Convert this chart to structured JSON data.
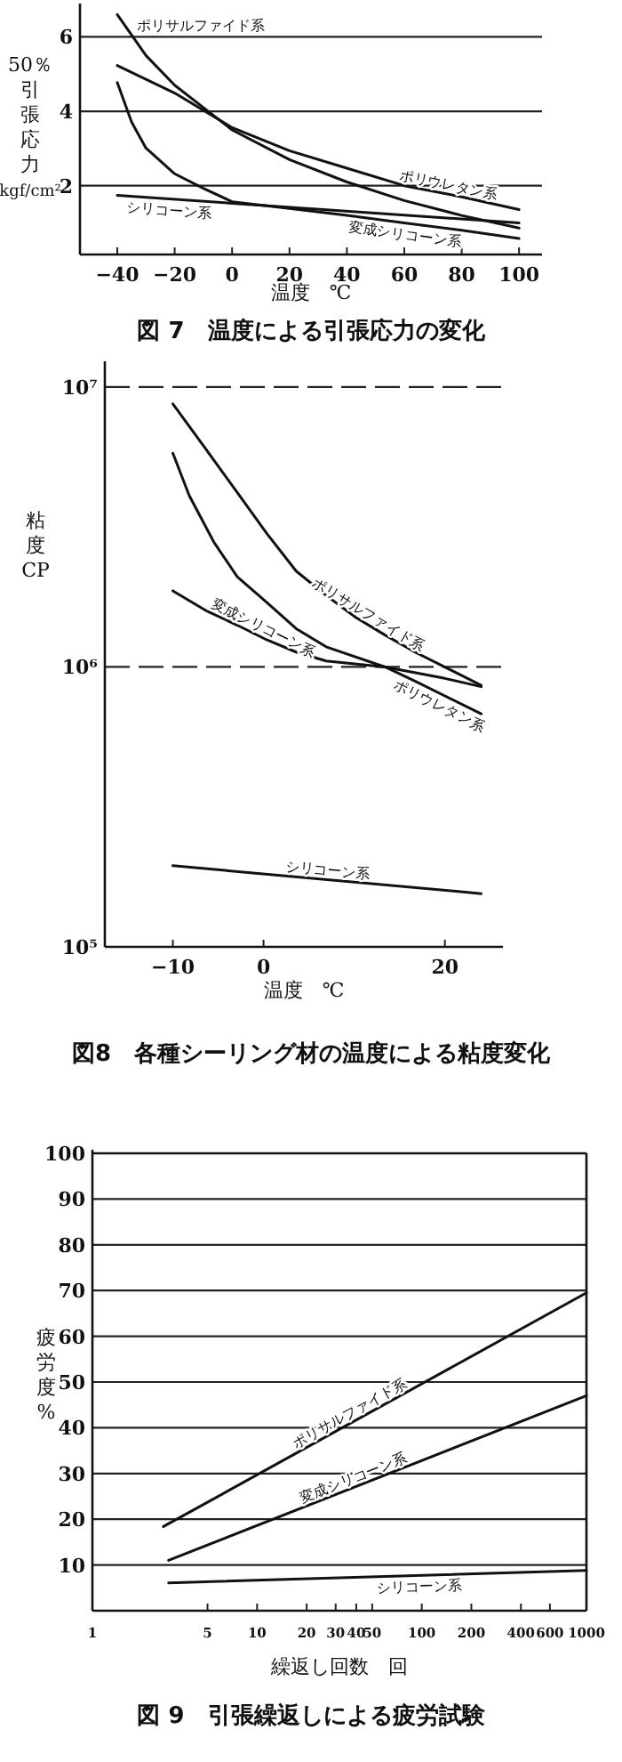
{
  "chart_data": [
    {
      "type": "line",
      "title": "図 7　温度による引張応力の変化",
      "xlabel": "温度　℃",
      "ylabel": "50％引張応力kgf/cm²",
      "xlim": [
        -53,
        108
      ],
      "xticks": [
        {
          "value": -40,
          "label": "−40"
        },
        {
          "value": -20,
          "label": "−20"
        },
        0,
        20,
        40,
        60,
        80,
        100
      ],
      "ylim": [
        0.15,
        6.8
      ],
      "yticks": [
        2,
        4,
        6
      ],
      "grid": "y",
      "series": [
        {
          "name": "ポリサルファイド系",
          "color": "#111111",
          "x": [
            -40,
            -30,
            -20,
            -10,
            0,
            20,
            40,
            60,
            80,
            100
          ],
          "values": [
            6.6,
            5.5,
            4.7,
            4.1,
            3.5,
            2.7,
            2.1,
            1.6,
            1.2,
            0.86
          ]
        },
        {
          "name": "ポリウレタン系",
          "color": "#111111",
          "x": [
            -40,
            -20,
            0,
            20,
            40,
            60,
            80,
            100
          ],
          "values": [
            5.23,
            4.49,
            3.56,
            2.94,
            2.47,
            2.0,
            1.7,
            1.36
          ]
        },
        {
          "name": "変成シリコーン系",
          "color": "#111111",
          "x": [
            -40,
            -35,
            -30,
            -20,
            -10,
            0,
            20,
            40,
            60,
            80,
            100
          ],
          "values": [
            4.77,
            3.71,
            3.01,
            2.32,
            1.93,
            1.57,
            1.39,
            1.2,
            1.0,
            0.8,
            0.58
          ]
        },
        {
          "name": "シリコーン系",
          "color": "#111111",
          "x": [
            -40,
            100
          ],
          "values": [
            1.74,
            1.0
          ]
        }
      ]
    },
    {
      "type": "line",
      "title": "図8　各種シーリング材の温度による粘度変化",
      "xlabel": "温度　℃",
      "ylabel": "粘度 CP",
      "log": "y",
      "xlim": [
        -17.5,
        26.4
      ],
      "xticks": [
        {
          "value": -10,
          "label": "−10"
        },
        0,
        20
      ],
      "ylim": [
        100000,
        12000000
      ],
      "yticks": [
        {
          "value": 100000,
          "label": "10⁵"
        },
        {
          "value": 1000000,
          "label": "10⁶"
        },
        {
          "value": 10000000,
          "label": "10⁷"
        }
      ],
      "grid": "y",
      "series": [
        {
          "name": "ポリサルファイド系",
          "color": "#111111",
          "x": [
            -10,
            -6.2,
            -2.9,
            0.35,
            3.6,
            6.9,
            10.2,
            13.4,
            16.7,
            24
          ],
          "values": [
            8700000,
            5900000,
            4200000,
            3000000,
            2200000,
            1800000,
            1500000,
            1300000,
            1130000,
            860000
          ]
        },
        {
          "name": "ポリウレタン系",
          "color": "#111111",
          "x": [
            -10,
            -8.2,
            -5.5,
            -2.9,
            0.35,
            3.6,
            6.9,
            13.4,
            16.7,
            24
          ],
          "values": [
            5800000,
            4100000,
            2800000,
            2100000,
            1700000,
            1370000,
            1180000,
            1000000,
            890000,
            680000
          ]
        },
        {
          "name": "変成シリコーン系",
          "color": "#111111",
          "x": [
            -10,
            -6.2,
            -2.9,
            0.35,
            3.6,
            6.9,
            13.4,
            20,
            24
          ],
          "values": [
            1870000,
            1580000,
            1410000,
            1250000,
            1130000,
            1050000,
            1000000,
            910000,
            850000
          ]
        },
        {
          "name": "シリコーン系",
          "color": "#111111",
          "x": [
            -10,
            24
          ],
          "values": [
            195000,
            155000
          ]
        }
      ]
    },
    {
      "type": "line",
      "title": "図 9　引張繰返しによる疲労試験",
      "xlabel": "繰返し回数　回",
      "ylabel": "疲労度 %",
      "log": "x",
      "xlim": [
        1,
        1000
      ],
      "xticks": [
        1,
        5,
        10,
        20,
        30,
        40,
        50,
        100,
        200,
        400,
        600,
        1000
      ],
      "ylim": [
        0,
        100
      ],
      "yticks": [
        10,
        20,
        30,
        40,
        50,
        60,
        70,
        80,
        90,
        100
      ],
      "grid": "y",
      "series": [
        {
          "name": "ポリサルファイド系",
          "color": "#111111",
          "x": [
            2.7,
            1000
          ],
          "values": [
            18.4,
            69.5
          ]
        },
        {
          "name": "変成シリコーン系",
          "color": "#111111",
          "x": [
            2.9,
            1000
          ],
          "values": [
            11,
            47
          ]
        },
        {
          "name": "シリコーン系",
          "color": "#111111",
          "x": [
            2.9,
            1000
          ],
          "values": [
            6.1,
            8.8
          ]
        }
      ]
    }
  ]
}
